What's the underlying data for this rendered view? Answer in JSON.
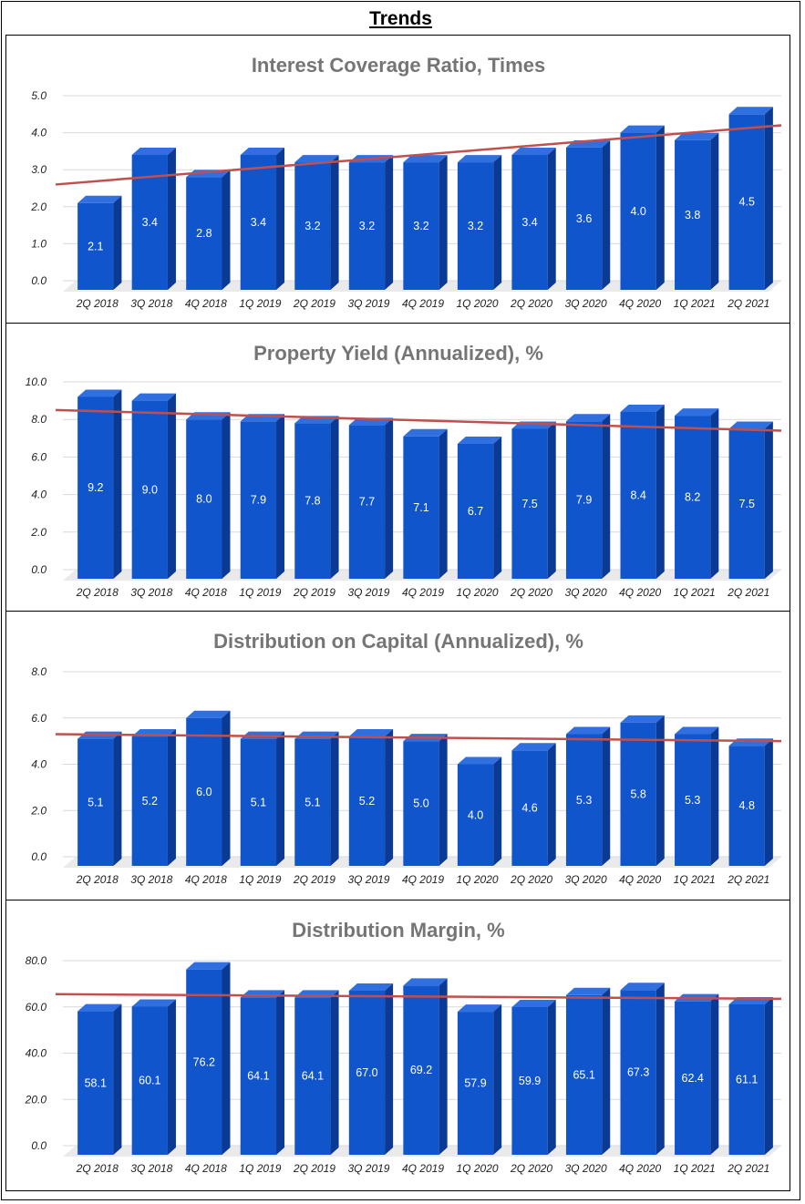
{
  "page_title": "Trends",
  "chart_data": [
    {
      "type": "bar",
      "title": "Interest Coverage Ratio, Times",
      "categories": [
        "2Q 2018",
        "3Q 2018",
        "4Q 2018",
        "1Q 2019",
        "2Q 2019",
        "3Q 2019",
        "4Q 2019",
        "1Q 2020",
        "2Q 2020",
        "3Q 2020",
        "4Q 2020",
        "1Q 2021",
        "2Q 2021"
      ],
      "values": [
        2.1,
        3.4,
        2.8,
        3.4,
        3.2,
        3.2,
        3.2,
        3.2,
        3.4,
        3.6,
        4.0,
        3.8,
        4.5
      ],
      "data_labels": [
        "2.1",
        "3.4",
        "2.8",
        "3.4",
        "3.2",
        "3.2",
        "3.2",
        "3.2",
        "3.4",
        "3.6",
        "4.0",
        "3.8",
        "4.5"
      ],
      "yticks": [
        "0.0",
        "1.0",
        "2.0",
        "3.0",
        "4.0",
        "5.0"
      ],
      "ylim": [
        0,
        5
      ],
      "trendline": [
        2.6,
        4.2
      ],
      "bar_color": "#1155cc",
      "trend_color": "#c0504d"
    },
    {
      "type": "bar",
      "title": "Property Yield (Annualized), %",
      "categories": [
        "2Q 2018",
        "3Q 2018",
        "4Q 2018",
        "1Q 2019",
        "2Q 2019",
        "3Q 2019",
        "4Q 2019",
        "1Q 2020",
        "2Q 2020",
        "3Q 2020",
        "4Q 2020",
        "1Q 2021",
        "2Q 2021"
      ],
      "values": [
        9.2,
        9.0,
        8.0,
        7.9,
        7.8,
        7.7,
        7.1,
        6.7,
        7.5,
        7.9,
        8.4,
        8.2,
        7.5
      ],
      "data_labels": [
        "9.2",
        "9.0",
        "8.0",
        "7.9",
        "7.8",
        "7.7",
        "7.1",
        "6.7",
        "7.5",
        "7.9",
        "8.4",
        "8.2",
        "7.5"
      ],
      "yticks": [
        "0.0",
        "2.0",
        "4.0",
        "6.0",
        "8.0",
        "10.0"
      ],
      "ylim": [
        0,
        10
      ],
      "trendline": [
        8.5,
        7.4
      ],
      "bar_color": "#1155cc",
      "trend_color": "#c0504d"
    },
    {
      "type": "bar",
      "title": "Distribution on Capital (Annualized), %",
      "categories": [
        "2Q 2018",
        "3Q 2018",
        "4Q 2018",
        "1Q 2019",
        "2Q 2019",
        "3Q 2019",
        "4Q 2019",
        "1Q 2020",
        "2Q 2020",
        "3Q 2020",
        "4Q 2020",
        "1Q 2021",
        "2Q 2021"
      ],
      "values": [
        5.1,
        5.2,
        6.0,
        5.1,
        5.1,
        5.2,
        5.0,
        4.0,
        4.6,
        5.3,
        5.8,
        5.3,
        4.8
      ],
      "data_labels": [
        "5.1",
        "5.2",
        "6.0",
        "5.1",
        "5.1",
        "5.2",
        "5.0",
        "4.0",
        "4.6",
        "5.3",
        "5.8",
        "5.3",
        "4.8"
      ],
      "yticks": [
        "0.0",
        "2.0",
        "4.0",
        "6.0",
        "8.0"
      ],
      "ylim": [
        0,
        8
      ],
      "trendline": [
        5.3,
        5.0
      ],
      "bar_color": "#1155cc",
      "trend_color": "#c0504d"
    },
    {
      "type": "bar",
      "title": "Distribution Margin, %",
      "categories": [
        "2Q 2018",
        "3Q 2018",
        "4Q 2018",
        "1Q 2019",
        "2Q 2019",
        "3Q 2019",
        "4Q 2019",
        "1Q 2020",
        "2Q 2020",
        "3Q 2020",
        "4Q 2020",
        "1Q 2021",
        "2Q 2021"
      ],
      "values": [
        58.1,
        60.1,
        76.2,
        64.1,
        64.1,
        67.0,
        69.2,
        57.9,
        59.9,
        65.1,
        67.3,
        62.4,
        61.1
      ],
      "data_labels": [
        "58.1",
        "60.1",
        "76.2",
        "64.1",
        "64.1",
        "67.0",
        "69.2",
        "57.9",
        "59.9",
        "65.1",
        "67.3",
        "62.4",
        "61.1"
      ],
      "yticks": [
        "0.0",
        "20.0",
        "40.0",
        "60.0",
        "80.0"
      ],
      "ylim": [
        0,
        80
      ],
      "trendline": [
        65.5,
        63.5
      ],
      "bar_color": "#1155cc",
      "trend_color": "#c0504d"
    }
  ]
}
